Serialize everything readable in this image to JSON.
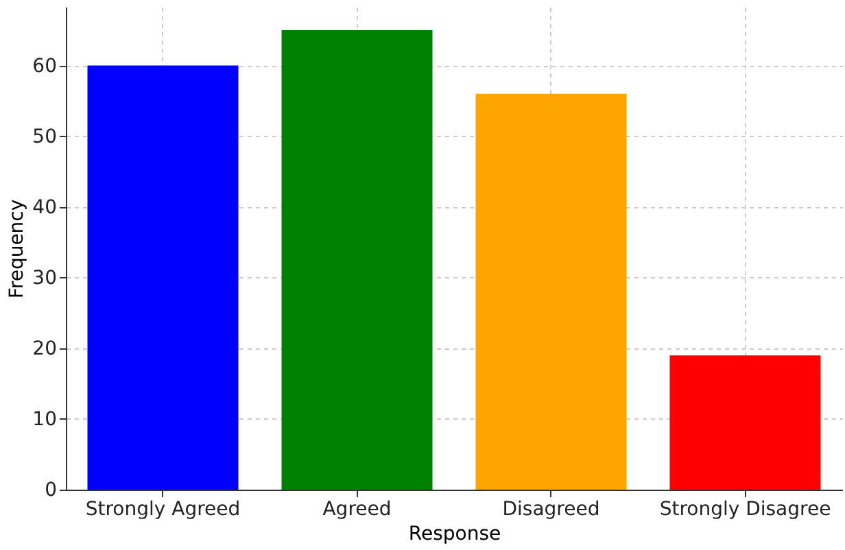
{
  "chart_data": {
    "type": "bar",
    "xlabel": "Response",
    "ylabel": "Frequency",
    "categories": [
      "Strongly Agreed",
      "Agreed",
      "Disagreed",
      "Strongly Disagree"
    ],
    "values": [
      60,
      65,
      56,
      19
    ],
    "colors": [
      "#0000ff",
      "#008000",
      "#ffa500",
      "#ff0000"
    ],
    "ylim": [
      0,
      68.3
    ],
    "yticks": [
      0,
      10,
      20,
      30,
      40,
      50,
      60
    ],
    "grid": true
  }
}
